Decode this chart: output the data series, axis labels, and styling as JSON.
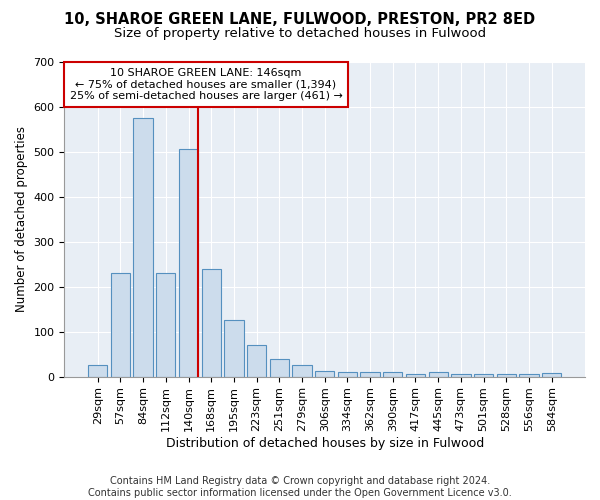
{
  "title1": "10, SHAROE GREEN LANE, FULWOOD, PRESTON, PR2 8ED",
  "title2": "Size of property relative to detached houses in Fulwood",
  "xlabel": "Distribution of detached houses by size in Fulwood",
  "ylabel": "Number of detached properties",
  "categories": [
    "29sqm",
    "57sqm",
    "84sqm",
    "112sqm",
    "140sqm",
    "168sqm",
    "195sqm",
    "223sqm",
    "251sqm",
    "279sqm",
    "306sqm",
    "334sqm",
    "362sqm",
    "390sqm",
    "417sqm",
    "445sqm",
    "473sqm",
    "501sqm",
    "528sqm",
    "556sqm",
    "584sqm"
  ],
  "values": [
    25,
    230,
    575,
    230,
    505,
    240,
    125,
    70,
    40,
    25,
    13,
    10,
    10,
    10,
    5,
    10,
    5,
    5,
    5,
    5,
    8
  ],
  "bar_color": "#ccdcec",
  "bar_edge_color": "#5590bf",
  "red_line_index": 4,
  "red_line_color": "#cc0000",
  "annotation_text": "10 SHAROE GREEN LANE: 146sqm\n← 75% of detached houses are smaller (1,394)\n25% of semi-detached houses are larger (461) →",
  "annotation_box_color": "white",
  "annotation_box_edge_color": "#cc0000",
  "ylim": [
    0,
    700
  ],
  "yticks": [
    0,
    100,
    200,
    300,
    400,
    500,
    600,
    700
  ],
  "footer_text": "Contains HM Land Registry data © Crown copyright and database right 2024.\nContains public sector information licensed under the Open Government Licence v3.0.",
  "background_color": "#ffffff",
  "plot_background_color": "#e8eef5",
  "title1_fontsize": 10.5,
  "title2_fontsize": 9.5,
  "xlabel_fontsize": 9,
  "ylabel_fontsize": 8.5,
  "tick_fontsize": 8,
  "footer_fontsize": 7,
  "annotation_fontsize": 8
}
